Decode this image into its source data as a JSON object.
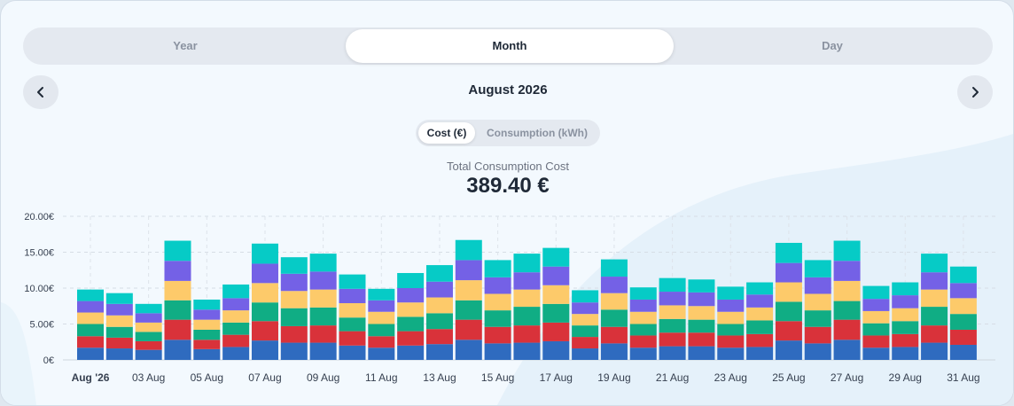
{
  "tabs": [
    {
      "label": "Year",
      "active": false
    },
    {
      "label": "Month",
      "active": true
    },
    {
      "label": "Day",
      "active": false
    }
  ],
  "period_title": "August 2026",
  "toggle": [
    {
      "label": "Cost (€)",
      "active": true
    },
    {
      "label": "Consumption (kWh)",
      "active": false
    }
  ],
  "total": {
    "label": "Total Consumption Cost",
    "value": "389.40 €"
  },
  "chart_data": {
    "type": "bar",
    "stacked": true,
    "grid": true,
    "ylim": [
      0,
      20
    ],
    "y_ticks": [
      "0€",
      "5.00€",
      "10.00€",
      "15.00€",
      "20.00€"
    ],
    "x_tick_labels": [
      {
        "index": 0,
        "label": "Aug '26",
        "bold": true
      },
      {
        "index": 2,
        "label": "03 Aug"
      },
      {
        "index": 4,
        "label": "05 Aug"
      },
      {
        "index": 6,
        "label": "07 Aug"
      },
      {
        "index": 8,
        "label": "09 Aug"
      },
      {
        "index": 10,
        "label": "11 Aug"
      },
      {
        "index": 12,
        "label": "13 Aug"
      },
      {
        "index": 14,
        "label": "15 Aug"
      },
      {
        "index": 16,
        "label": "17 Aug"
      },
      {
        "index": 18,
        "label": "19 Aug"
      },
      {
        "index": 20,
        "label": "21 Aug"
      },
      {
        "index": 22,
        "label": "23 Aug"
      },
      {
        "index": 24,
        "label": "25 Aug"
      },
      {
        "index": 26,
        "label": "27 Aug"
      },
      {
        "index": 28,
        "label": "29 Aug"
      },
      {
        "index": 30,
        "label": "31 Aug"
      }
    ],
    "series": [
      {
        "color": "#2f6bbf",
        "values": [
          1.7,
          1.6,
          1.4,
          2.8,
          1.5,
          1.8,
          2.7,
          2.4,
          2.4,
          2.0,
          1.7,
          2.0,
          2.2,
          2.8,
          2.3,
          2.4,
          2.6,
          1.6,
          2.3,
          1.7,
          1.9,
          1.9,
          1.7,
          1.8,
          2.7,
          2.3,
          2.8,
          1.7,
          1.8,
          2.4,
          2.1
        ]
      },
      {
        "color": "#d9323a",
        "values": [
          1.6,
          1.5,
          1.2,
          2.8,
          1.3,
          1.7,
          2.7,
          2.3,
          2.4,
          2.0,
          1.6,
          2.0,
          2.1,
          2.8,
          2.3,
          2.4,
          2.6,
          1.6,
          2.3,
          1.7,
          1.9,
          1.9,
          1.7,
          1.8,
          2.7,
          2.3,
          2.8,
          1.7,
          1.8,
          2.4,
          2.1
        ]
      },
      {
        "color": "#10ad84",
        "values": [
          1.7,
          1.5,
          1.3,
          2.7,
          1.4,
          1.7,
          2.6,
          2.5,
          2.5,
          1.9,
          1.7,
          2.0,
          2.2,
          2.7,
          2.3,
          2.6,
          2.6,
          1.6,
          2.4,
          1.6,
          1.9,
          1.8,
          1.6,
          1.9,
          2.7,
          2.3,
          2.6,
          1.7,
          1.8,
          2.6,
          2.2
        ]
      },
      {
        "color": "#fdca6a",
        "values": [
          1.6,
          1.6,
          1.3,
          2.7,
          1.4,
          1.7,
          2.7,
          2.4,
          2.5,
          2.0,
          1.7,
          2.0,
          2.2,
          2.8,
          2.3,
          2.4,
          2.6,
          1.6,
          2.3,
          1.7,
          1.9,
          1.9,
          1.7,
          1.8,
          2.7,
          2.3,
          2.8,
          1.7,
          1.8,
          2.4,
          2.2
        ]
      },
      {
        "color": "#7461e6",
        "values": [
          1.6,
          1.6,
          1.3,
          2.8,
          1.4,
          1.7,
          2.7,
          2.4,
          2.5,
          2.0,
          1.6,
          2.0,
          2.2,
          2.8,
          2.3,
          2.4,
          2.6,
          1.6,
          2.3,
          1.7,
          1.9,
          1.9,
          1.7,
          1.8,
          2.7,
          2.3,
          2.8,
          1.7,
          1.8,
          2.4,
          2.1
        ]
      },
      {
        "color": "#06cbc6",
        "values": [
          1.6,
          1.5,
          1.3,
          2.8,
          1.4,
          1.9,
          2.8,
          2.3,
          2.5,
          2.0,
          1.6,
          2.1,
          2.3,
          2.8,
          2.4,
          2.6,
          2.6,
          1.7,
          2.4,
          1.7,
          1.9,
          1.8,
          1.8,
          1.7,
          2.8,
          2.4,
          2.8,
          1.8,
          1.8,
          2.6,
          2.3
        ]
      }
    ]
  }
}
